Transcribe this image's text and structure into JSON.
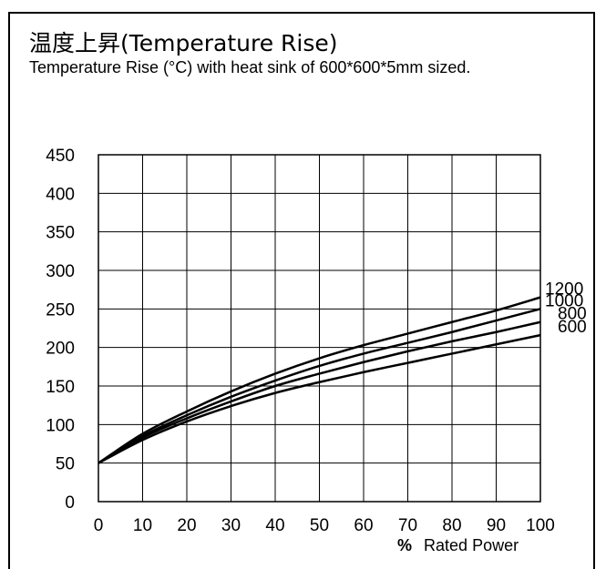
{
  "title": "温度上昇(Temperature Rise)",
  "subtitle": "Temperature Rise (°C) with heat sink of 600*600*5mm sized.",
  "chart_data": {
    "type": "line",
    "title": "温度上昇(Temperature Rise)",
    "xlabel_prefix": "%",
    "xlabel": "Rated Power",
    "ylabel": "",
    "x": [
      0,
      10,
      20,
      30,
      40,
      50,
      60,
      70,
      80,
      90,
      100
    ],
    "xlim": [
      0,
      100
    ],
    "ylim": [
      0,
      450
    ],
    "xticks": [
      "0",
      "10",
      "20",
      "30",
      "40",
      "50",
      "60",
      "70",
      "80",
      "90",
      "100"
    ],
    "yticks": [
      "0",
      "50",
      "100",
      "150",
      "200",
      "250",
      "300",
      "350",
      "400",
      "450"
    ],
    "grid": true,
    "series": [
      {
        "name": "1200",
        "values": [
          50,
          88,
          117,
          143,
          166,
          186,
          203,
          218,
          233,
          248,
          265
        ]
      },
      {
        "name": "1000",
        "values": [
          50,
          85,
          112,
          136,
          157,
          176,
          192,
          206,
          220,
          235,
          250
        ]
      },
      {
        "name": "800",
        "values": [
          50,
          83,
          108,
          130,
          150,
          166,
          181,
          195,
          208,
          220,
          233
        ]
      },
      {
        "name": "600",
        "values": [
          50,
          80,
          104,
          124,
          141,
          155,
          168,
          180,
          192,
          204,
          216
        ]
      }
    ],
    "line_color": "#000000"
  }
}
